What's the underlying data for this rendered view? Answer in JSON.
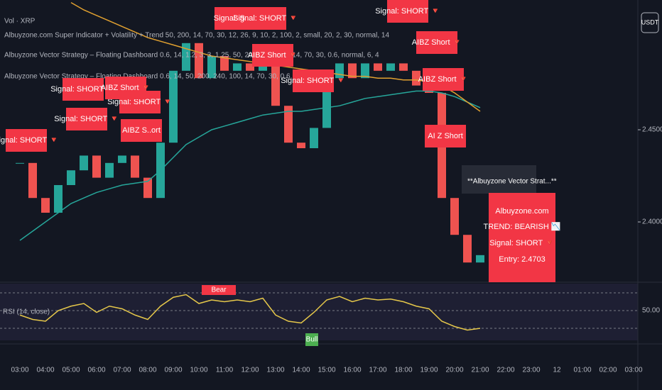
{
  "header": {
    "symbol": "Vol · XRP",
    "indicators": [
      "Albuyzone.com Super Indicator + Volatility + Trend 50, 200, 14, 70, 30, 12, 26, 9, 10, 2, 100, 2, small, 20, 2, 30, normal, 14",
      "Albuyzone Vector Strategy – Floating Dashboard 0.6, 14, 1.2, 3, 3, 1.25, 50, 200, 240, 100, 14, 70, 30, 0.6, normal, 6, 4",
      "Albuyzone Vector Strategy – Floating Dashboard 0.6, 14, 50, 200, 240, 100, 14, 70, 30, 0.6, normal, 4"
    ],
    "currency": "USDT"
  },
  "price_chart": {
    "close": [
      2.432,
      2.413,
      2.405,
      2.42,
      2.428,
      2.436,
      2.424,
      2.432,
      2.436,
      2.424,
      2.413,
      2.443,
      2.482,
      2.497,
      2.478,
      2.49,
      2.482,
      2.486,
      2.482,
      2.49,
      2.463,
      2.443,
      2.44,
      2.451,
      2.478,
      2.486,
      2.478,
      2.486,
      2.482,
      2.486,
      2.482,
      2.474,
      2.47,
      2.413,
      2.393,
      2.378,
      2.382
    ],
    "ma_fast": [
      2.39,
      2.395,
      2.4,
      2.405,
      2.41,
      2.413,
      2.416,
      2.418,
      2.42,
      2.421,
      2.422,
      2.428,
      2.435,
      2.442,
      2.446,
      2.45,
      2.452,
      2.454,
      2.456,
      2.458,
      2.459,
      2.46,
      2.46,
      2.461,
      2.462,
      2.463,
      2.465,
      2.467,
      2.468,
      2.469,
      2.47,
      2.471,
      2.471,
      2.47,
      2.468,
      2.465,
      2.462
    ],
    "ma_slow": [
      null,
      null,
      null,
      null,
      2.519,
      2.515,
      2.512,
      2.509,
      2.506,
      2.503,
      2.5,
      2.498,
      2.496,
      2.494,
      2.492,
      2.49,
      2.489,
      2.488,
      2.487,
      2.486,
      2.485,
      2.484,
      2.483,
      2.482,
      2.481,
      2.48,
      2.479,
      2.479,
      2.478,
      2.478,
      2.477,
      2.477,
      2.476,
      2.474,
      2.47,
      2.465,
      2.46
    ],
    "price_axis": [
      {
        "value": 2.45,
        "label": "2.4500"
      },
      {
        "value": 2.4,
        "label": "2.4000"
      }
    ],
    "time_axis": [
      "03:00",
      "04:00",
      "05:00",
      "06:00",
      "07:00",
      "08:00",
      "09:00",
      "10:00",
      "11:00",
      "12:00",
      "13:00",
      "14:00",
      "15:00",
      "16:00",
      "17:00",
      "18:00",
      "19:00",
      "20:00",
      "21:00",
      "22:00",
      "23:00",
      "12",
      "01:00",
      "02:00",
      "03:00"
    ]
  },
  "rsi": {
    "title": "RSI (14, close)",
    "values": [
      45,
      40,
      38,
      50,
      55,
      58,
      48,
      55,
      52,
      45,
      40,
      55,
      65,
      68,
      58,
      62,
      60,
      62,
      60,
      64,
      45,
      38,
      36,
      48,
      62,
      66,
      60,
      64,
      62,
      63,
      60,
      55,
      52,
      38,
      32,
      28,
      30
    ],
    "levels": [
      70,
      {
        "value": 50,
        "label": "50.00"
      },
      30
    ],
    "bear": "Bear",
    "bull": "Bull"
  },
  "signals": [
    "Signal: SHORT 🔻",
    "Signal: SHO",
    "Signal: SHORT 🔻",
    "AIBZ Short 🔻",
    "Signal: SHORT 🔻",
    "Signal: SHORT 🔻",
    "AIBZ Short 🔻",
    "Signal: SHORT 🔻",
    "AIBZ Short 🔻",
    "AIBZ S..ort",
    "Signal: SHORT 🔻",
    "AI Z Short",
    "Signal: SHORT 🔻",
    "AIBZ Short 🔻"
  ],
  "dashboard": {
    "popup": "**Albuyzone Vector Strat...**",
    "site": "Albuyzone.com",
    "trend": "TREND: BEARISH 📉",
    "signal": "Signal: SHORT 🔻",
    "entry": "Entry: 2.4703"
  }
}
